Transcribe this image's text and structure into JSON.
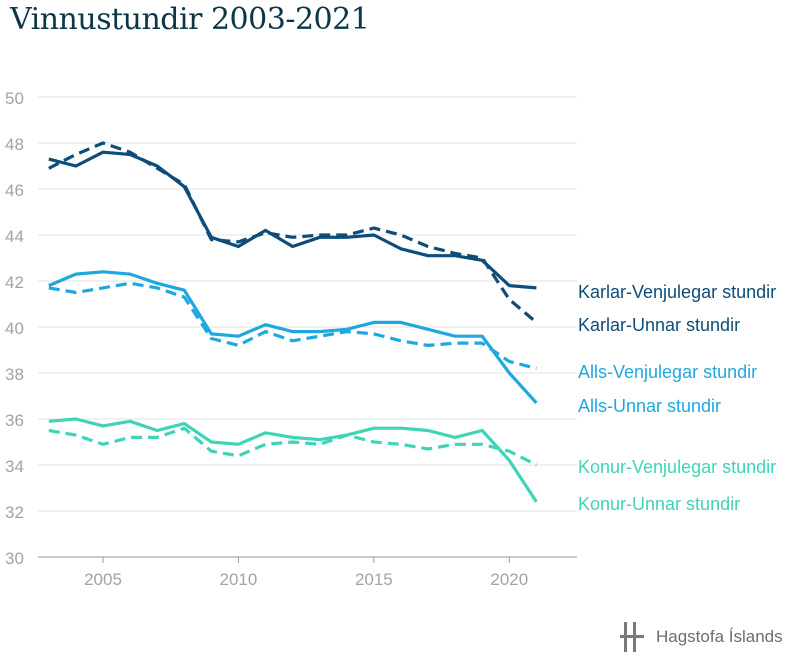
{
  "title": "Vinnustundir 2003-2021",
  "brand": "Hagstofa Íslands",
  "chart_data": {
    "type": "line",
    "title": "Vinnustundir 2003-2021",
    "xlabel": "",
    "ylabel": "",
    "xlim": [
      2002.6,
      2022.5
    ],
    "ylim": [
      30,
      50
    ],
    "xticks": [
      2005,
      2010,
      2015,
      2020
    ],
    "yticks": [
      30,
      32,
      34,
      36,
      38,
      40,
      42,
      44,
      46,
      48,
      50
    ],
    "grid": true,
    "legend": "direct labels at right end of lines",
    "x": [
      2003,
      2004,
      2005,
      2006,
      2007,
      2008,
      2009,
      2010,
      2011,
      2012,
      2013,
      2014,
      2015,
      2016,
      2017,
      2018,
      2019,
      2020,
      2021
    ],
    "series": [
      {
        "name": "Karlar-Venjulegar stundir",
        "color": "#0d4d79",
        "dash": false,
        "values": [
          47.3,
          47.0,
          47.6,
          47.5,
          47.0,
          46.1,
          43.9,
          43.5,
          44.2,
          43.5,
          43.9,
          43.9,
          44.0,
          43.4,
          43.1,
          43.1,
          42.9,
          41.8,
          41.7
        ]
      },
      {
        "name": "Karlar-Unnar stundir",
        "color": "#0d4d79",
        "dash": true,
        "values": [
          46.9,
          47.5,
          48.0,
          47.6,
          46.9,
          46.2,
          43.8,
          43.7,
          44.1,
          43.9,
          44.0,
          44.0,
          44.3,
          44.0,
          43.5,
          43.2,
          43.0,
          41.2,
          40.2
        ]
      },
      {
        "name": "Alls-Venjulegar stundir",
        "color": "#1fa8e0",
        "dash": true,
        "values": [
          41.7,
          41.5,
          41.7,
          41.9,
          41.7,
          41.3,
          39.5,
          39.2,
          39.8,
          39.4,
          39.6,
          39.8,
          39.7,
          39.4,
          39.2,
          39.3,
          39.3,
          38.5,
          38.2
        ]
      },
      {
        "name": "Alls-Unnar stundir",
        "color": "#1fa8e0",
        "dash": false,
        "values": [
          41.8,
          42.3,
          42.4,
          42.3,
          41.9,
          41.6,
          39.7,
          39.6,
          40.1,
          39.8,
          39.8,
          39.9,
          40.2,
          40.2,
          39.9,
          39.6,
          39.6,
          38.0,
          36.7
        ]
      },
      {
        "name": "Konur-Venjulegar stundir",
        "color": "#3fd4b8",
        "dash": true,
        "values": [
          35.5,
          35.3,
          34.9,
          35.2,
          35.2,
          35.6,
          34.6,
          34.4,
          34.9,
          35.0,
          34.9,
          35.3,
          35.0,
          34.9,
          34.7,
          34.9,
          34.9,
          34.6,
          34.0
        ]
      },
      {
        "name": "Konur-Unnar stundir",
        "color": "#3fd4b8",
        "dash": false,
        "values": [
          35.9,
          36.0,
          35.7,
          35.9,
          35.5,
          35.8,
          35.0,
          34.9,
          35.4,
          35.2,
          35.1,
          35.3,
          35.6,
          35.6,
          35.5,
          35.2,
          35.5,
          34.2,
          32.4
        ]
      }
    ]
  }
}
